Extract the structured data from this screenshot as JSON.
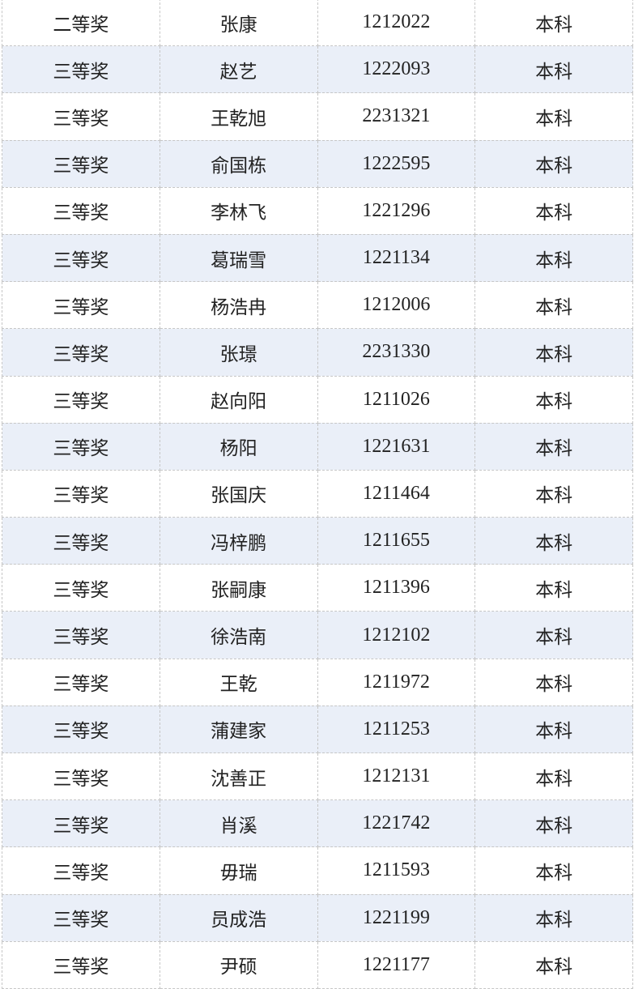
{
  "rows": [
    {
      "award": "二等奖",
      "name": "张康",
      "id": "1212022",
      "level": "本科"
    },
    {
      "award": "三等奖",
      "name": "赵艺",
      "id": "1222093",
      "level": "本科"
    },
    {
      "award": "三等奖",
      "name": "王乾旭",
      "id": "2231321",
      "level": "本科"
    },
    {
      "award": "三等奖",
      "name": "俞国栋",
      "id": "1222595",
      "level": "本科"
    },
    {
      "award": "三等奖",
      "name": "李林飞",
      "id": "1221296",
      "level": "本科"
    },
    {
      "award": "三等奖",
      "name": "葛瑞雪",
      "id": "1221134",
      "level": "本科"
    },
    {
      "award": "三等奖",
      "name": "杨浩冉",
      "id": "1212006",
      "level": "本科"
    },
    {
      "award": "三等奖",
      "name": "张璟",
      "id": "2231330",
      "level": "本科"
    },
    {
      "award": "三等奖",
      "name": "赵向阳",
      "id": "1211026",
      "level": "本科"
    },
    {
      "award": "三等奖",
      "name": "杨阳",
      "id": "1221631",
      "level": "本科"
    },
    {
      "award": "三等奖",
      "name": "张国庆",
      "id": "1211464",
      "level": "本科"
    },
    {
      "award": "三等奖",
      "name": "冯梓鹏",
      "id": "1211655",
      "level": "本科"
    },
    {
      "award": "三等奖",
      "name": "张嗣康",
      "id": "1211396",
      "level": "本科"
    },
    {
      "award": "三等奖",
      "name": "徐浩南",
      "id": "1212102",
      "level": "本科"
    },
    {
      "award": "三等奖",
      "name": "王乾",
      "id": "1211972",
      "level": "本科"
    },
    {
      "award": "三等奖",
      "name": "蒲建家",
      "id": "1211253",
      "level": "本科"
    },
    {
      "award": "三等奖",
      "name": "沈善正",
      "id": "1212131",
      "level": "本科"
    },
    {
      "award": "三等奖",
      "name": "肖溪",
      "id": "1221742",
      "level": "本科"
    },
    {
      "award": "三等奖",
      "name": "毋瑞",
      "id": "1211593",
      "level": "本科"
    },
    {
      "award": "三等奖",
      "name": "员成浩",
      "id": "1221199",
      "level": "本科"
    },
    {
      "award": "三等奖",
      "name": "尹硕",
      "id": "1221177",
      "level": "本科"
    }
  ],
  "colors": {
    "stripe": "#eaeff8",
    "border": "#c6c6c6"
  }
}
